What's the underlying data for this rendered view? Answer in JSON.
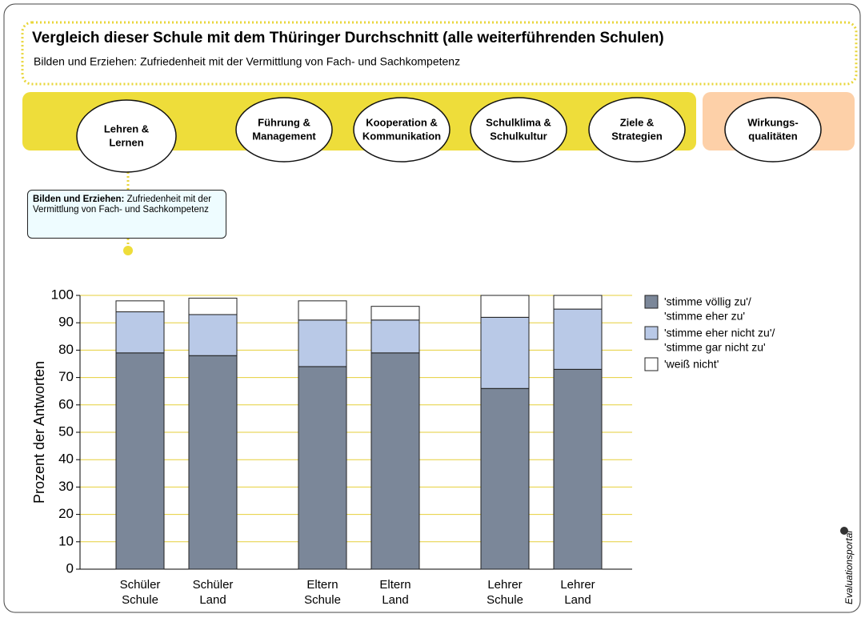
{
  "header": {
    "title": "Vergleich dieser Schule mit dem Thüringer Durchschnitt (alle weiterführenden Schulen)",
    "subtitle": "Bilden und Erziehen: Zufriedenheit mit der Vermittlung von Fach- und Sachkompetenz"
  },
  "nav": [
    [
      "Lehren &",
      "Lernen"
    ],
    [
      "Führung &",
      "Management"
    ],
    [
      "Kooperation &",
      "Kommunikation"
    ],
    [
      "Schulklima &",
      "Schulkultur"
    ],
    [
      "Ziele &",
      "Strategien"
    ],
    [
      "Wirkungs-",
      "qualitäten"
    ]
  ],
  "info": {
    "bold": "Bilden und Erziehen:",
    "text": "Zufriedenheit mit der Vermittlung von Fach- und Sachkompetenz"
  },
  "logo": "Evaluationsportal",
  "chart_data": {
    "type": "stacked_bar",
    "ylabel": "Prozent der Antworten",
    "categories": [
      [
        "Schüler",
        "Schule"
      ],
      [
        "Schüler",
        "Land"
      ],
      [
        "Eltern",
        "Schule"
      ],
      [
        "Eltern",
        "Land"
      ],
      [
        "Lehrer",
        "Schule"
      ],
      [
        "Lehrer",
        "Land"
      ]
    ],
    "series": [
      {
        "name": [
          "'stimme völlig zu'/",
          "'stimme eher zu'"
        ],
        "color": "#7b8799",
        "values": [
          79,
          78,
          74,
          79,
          66,
          73
        ]
      },
      {
        "name": [
          "'stimme eher nicht zu'/",
          "'stimme gar nicht zu'"
        ],
        "color": "#b9c9e7",
        "values": [
          15,
          15,
          17,
          12,
          26,
          22
        ]
      },
      {
        "name": [
          "'weiß nicht'"
        ],
        "color": "#ffffff",
        "values": [
          4,
          6,
          7,
          5,
          8,
          5
        ]
      }
    ],
    "ylim": [
      0,
      100
    ],
    "yticks": [
      0,
      10,
      20,
      30,
      40,
      50,
      60,
      70,
      80,
      90,
      100
    ],
    "grid": true,
    "grid_color": "#e6cf3a"
  }
}
